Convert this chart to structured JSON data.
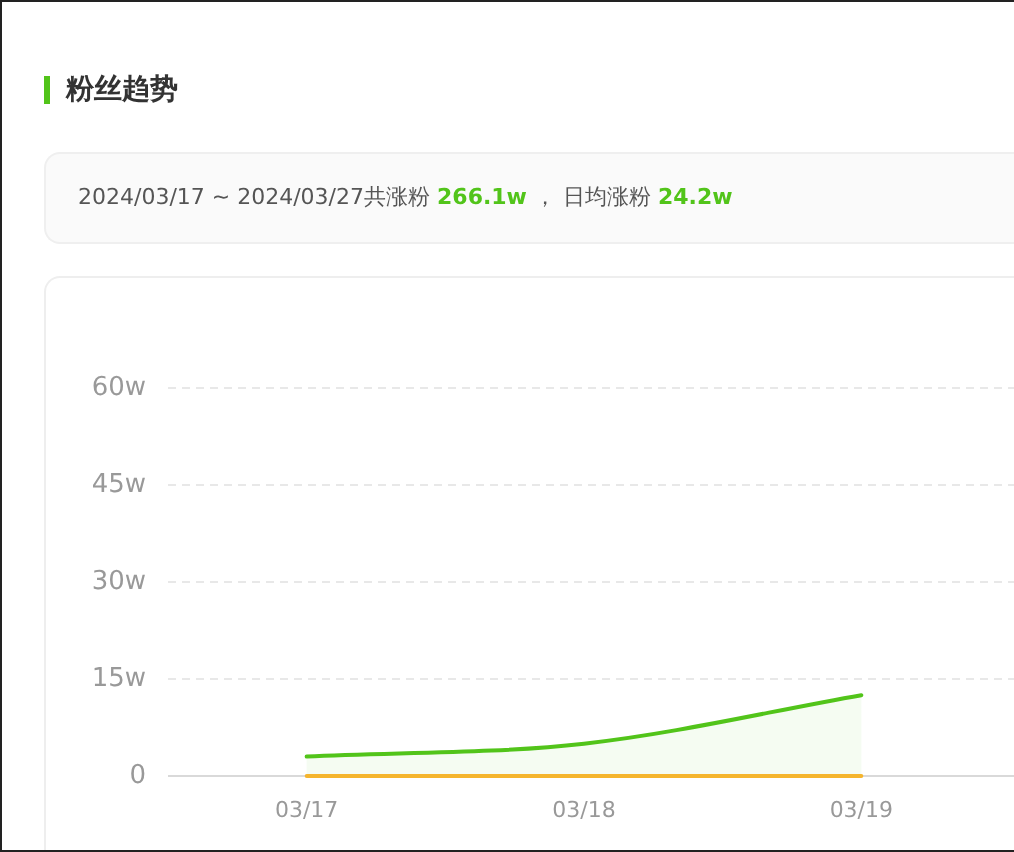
{
  "chart_data": {
    "type": "line",
    "title": "粉丝趋势",
    "subtitle": "2024/03/17 ~ 2024/03/27共涨粉 **266.1w** ， 日均涨粉 **24.2w**",
    "categories": [
      "03/17",
      "03/18",
      "03/19"
    ],
    "series": [
      {
        "type": "area",
        "color": "#52c41a",
        "values": [
          3,
          5,
          12.5
        ]
      },
      {
        "type": "line",
        "color": "#f5b52e",
        "values": [
          0,
          0,
          0
        ]
      }
    ],
    "ylim": [
      0,
      60
    ],
    "yticks": [
      0,
      {
        "value": 15,
        "label": "15w"
      },
      {
        "value": 30,
        "label": "30w"
      },
      {
        "value": 45,
        "label": "45w"
      },
      {
        "value": 60,
        "label": "60w"
      }
    ],
    "grid": "y",
    "marker": "none"
  }
}
